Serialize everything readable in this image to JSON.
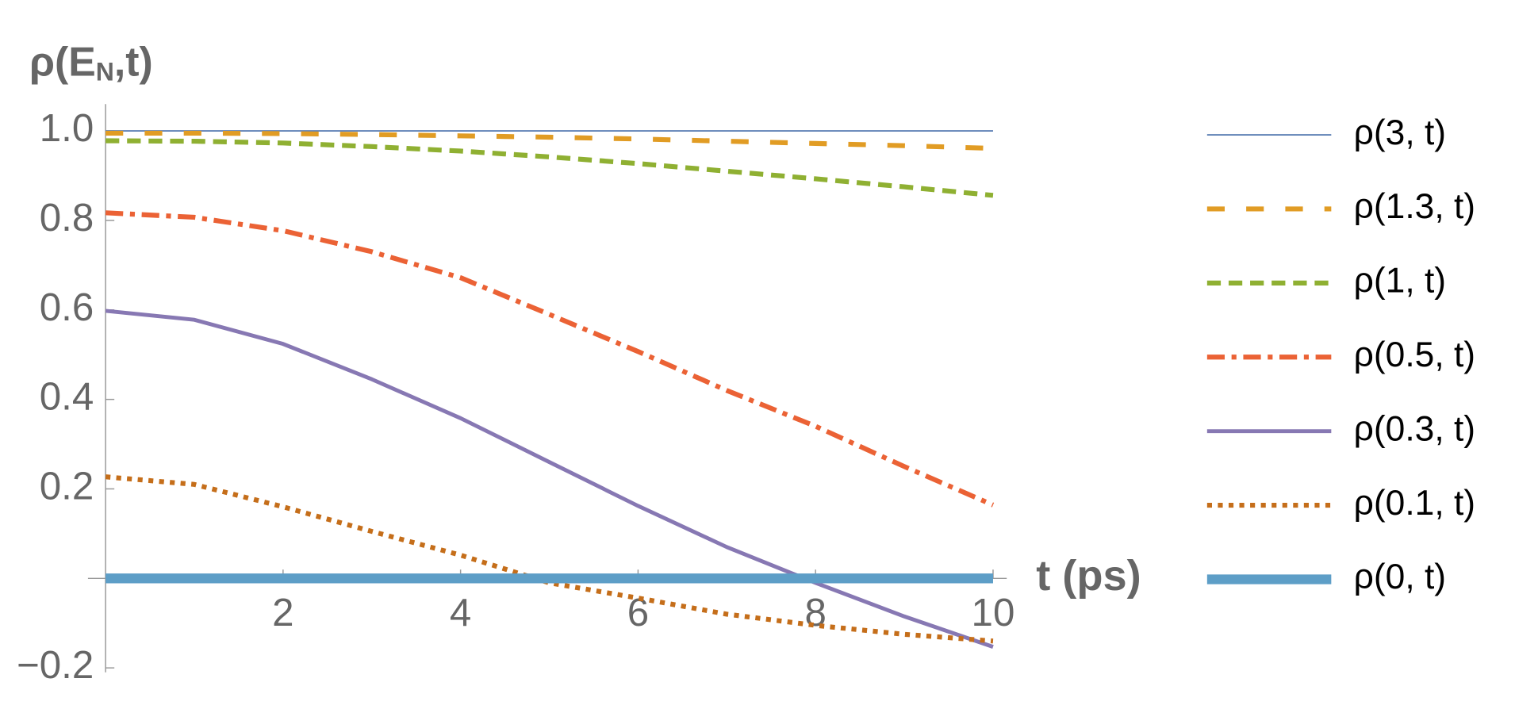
{
  "chart_data": {
    "type": "line",
    "y_label": {
      "base": "ρ(E",
      "subscript": "N",
      "end": ",t)"
    },
    "x_label": "t (ps)",
    "x": [
      0,
      1,
      2,
      3,
      4,
      5,
      6,
      7,
      8,
      9,
      10
    ],
    "xlim": [
      0,
      10
    ],
    "xticks": [
      2,
      4,
      6,
      8,
      10
    ],
    "ylim": [
      -0.21,
      1.06
    ],
    "yticks": [
      {
        "value": -0.2,
        "label": "−0.2"
      },
      0.2,
      0.4,
      0.6,
      0.8,
      {
        "value": 1,
        "label": "1.0"
      }
    ],
    "series": [
      {
        "name": "ρ(3, t)",
        "color": "#5e81b5",
        "width": 1.5,
        "dash": "none",
        "values": [
          1,
          1,
          1,
          1,
          1,
          1,
          1,
          1,
          1,
          1,
          1
        ]
      },
      {
        "name": "ρ(1.3, t)",
        "color": "#e19c24",
        "width": 5,
        "dash": "18 22",
        "values": [
          0.995,
          0.995,
          0.994,
          0.992,
          0.989,
          0.986,
          0.982,
          0.977,
          0.972,
          0.967,
          0.961
        ]
      },
      {
        "name": "ρ(1, t)",
        "color": "#8fb032",
        "width": 5,
        "dash": "14 8",
        "values": [
          0.978,
          0.977,
          0.973,
          0.965,
          0.955,
          0.942,
          0.927,
          0.91,
          0.893,
          0.875,
          0.856
        ]
      },
      {
        "name": "ρ(0.5, t)",
        "color": "#eb6235",
        "width": 5,
        "dash": "18 7 5 7",
        "values": [
          0.817,
          0.807,
          0.777,
          0.73,
          0.672,
          0.59,
          0.507,
          0.42,
          0.34,
          0.25,
          0.164
        ]
      },
      {
        "name": "ρ(0.3, t)",
        "color": "#8778b3",
        "width": 4,
        "dash": "none",
        "values": [
          0.598,
          0.578,
          0.524,
          0.445,
          0.358,
          0.26,
          0.162,
          0.07,
          -0.01,
          -0.085,
          -0.153
        ]
      },
      {
        "name": "ρ(0.1, t)",
        "color": "#c56e1a",
        "width": 5,
        "dash": "5 6",
        "values": [
          0.227,
          0.21,
          0.16,
          0.105,
          0.052,
          -0.01,
          -0.044,
          -0.08,
          -0.105,
          -0.125,
          -0.14
        ]
      },
      {
        "name": "ρ(0, t)",
        "color": "#5d9ec7",
        "width": 10,
        "dash": "none",
        "values": [
          0,
          0,
          0,
          0,
          0,
          0,
          0,
          0,
          0,
          0,
          0
        ]
      }
    ]
  }
}
